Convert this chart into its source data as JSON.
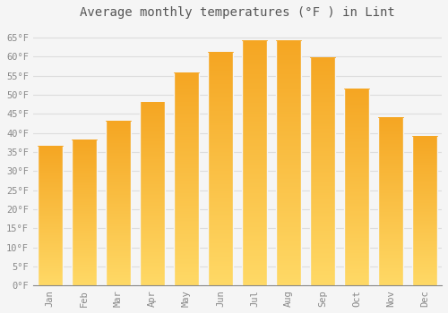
{
  "title": "Average monthly temperatures (°F ) in Lint",
  "months": [
    "Jan",
    "Feb",
    "Mar",
    "Apr",
    "May",
    "Jun",
    "Jul",
    "Aug",
    "Sep",
    "Oct",
    "Nov",
    "Dec"
  ],
  "values": [
    36.5,
    38.0,
    43.0,
    48.0,
    55.5,
    61.0,
    64.0,
    64.0,
    59.5,
    51.5,
    44.0,
    39.0
  ],
  "bar_color_top": "#F5A623",
  "bar_color_bottom": "#FFD966",
  "ylim": [
    0,
    68
  ],
  "yticks": [
    0,
    5,
    10,
    15,
    20,
    25,
    30,
    35,
    40,
    45,
    50,
    55,
    60,
    65
  ],
  "ytick_labels": [
    "0°F",
    "5°F",
    "10°F",
    "15°F",
    "20°F",
    "25°F",
    "30°F",
    "35°F",
    "40°F",
    "45°F",
    "50°F",
    "55°F",
    "60°F",
    "65°F"
  ],
  "bg_color": "#F5F5F5",
  "grid_color": "#DDDDDD",
  "title_fontsize": 10,
  "tick_fontsize": 7.5,
  "bar_width": 0.75
}
